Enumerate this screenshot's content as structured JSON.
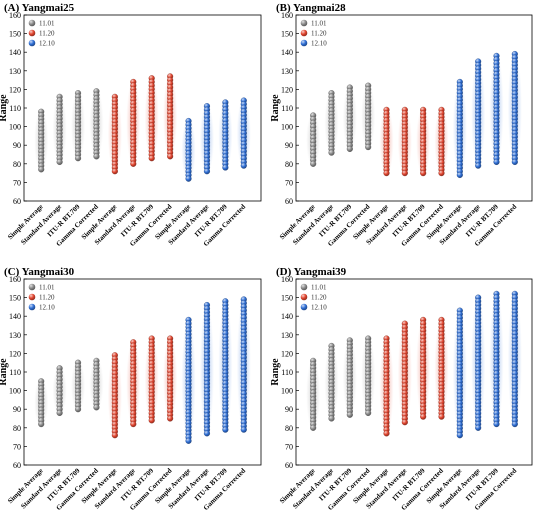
{
  "colors": {
    "11.01": "#8c8c8c",
    "11.20": "#e2452f",
    "12.10": "#2f6fd6"
  },
  "chart_data": [
    {
      "type": "scatter",
      "title": "(A) Yangmai25",
      "ylabel": "Range",
      "ylim": [
        60,
        160
      ],
      "yticks": [
        60,
        70,
        80,
        90,
        100,
        110,
        120,
        130,
        140,
        150,
        160
      ],
      "legend": [
        "11.01",
        "11.20",
        "12.10"
      ],
      "categories": [
        "Simple Average",
        "Standard Average",
        "ITU-R BT.709",
        "Gamma Corrected",
        "Simple Average",
        "Standard Average",
        "ITU-R BT.709",
        "Gamma Corrected",
        "Simple Average",
        "Standard Average",
        "ITU-R BT.709",
        "Gamma Corrected"
      ],
      "series": [
        {
          "name": "11.01",
          "columns": [
            {
              "min": 77,
              "max": 108
            },
            {
              "min": 81,
              "max": 116
            },
            {
              "min": 83,
              "max": 118
            },
            {
              "min": 84,
              "max": 119
            }
          ]
        },
        {
          "name": "11.20",
          "columns": [
            {
              "min": 76,
              "max": 116
            },
            {
              "min": 80,
              "max": 124
            },
            {
              "min": 83,
              "max": 126
            },
            {
              "min": 84,
              "max": 127
            }
          ]
        },
        {
          "name": "12.10",
          "columns": [
            {
              "min": 72,
              "max": 103
            },
            {
              "min": 76,
              "max": 111
            },
            {
              "min": 78,
              "max": 113
            },
            {
              "min": 79,
              "max": 114
            }
          ]
        }
      ]
    },
    {
      "type": "scatter",
      "title": "(B) Yangmai28",
      "ylabel": "Range",
      "ylim": [
        60,
        160
      ],
      "yticks": [
        60,
        70,
        80,
        90,
        100,
        110,
        120,
        130,
        140,
        150,
        160
      ],
      "legend": [
        "11.01",
        "11.20",
        "12.10"
      ],
      "categories": [
        "Simple Average",
        "Standard Average",
        "ITU-R BT.709",
        "Gamma Corrected",
        "Simple Average",
        "Standard Average",
        "ITU-R BT.709",
        "Gamma Corrected",
        "Simple Average",
        "Standard Average",
        "ITU-R BT.709",
        "Gamma Corrected"
      ],
      "series": [
        {
          "name": "11.01",
          "columns": [
            {
              "min": 80,
              "max": 106
            },
            {
              "min": 86,
              "max": 118
            },
            {
              "min": 88,
              "max": 121
            },
            {
              "min": 89,
              "max": 122
            }
          ]
        },
        {
          "name": "11.20",
          "columns": [
            {
              "min": 75,
              "max": 109
            },
            {
              "min": 75,
              "max": 109
            },
            {
              "min": 75,
              "max": 109
            },
            {
              "min": 75,
              "max": 109
            }
          ]
        },
        {
          "name": "12.10",
          "columns": [
            {
              "min": 74,
              "max": 124
            },
            {
              "min": 79,
              "max": 135
            },
            {
              "min": 81,
              "max": 138
            },
            {
              "min": 81,
              "max": 139
            }
          ]
        }
      ]
    },
    {
      "type": "scatter",
      "title": "(C) Yangmai30",
      "ylabel": "Range",
      "ylim": [
        60,
        160
      ],
      "yticks": [
        60,
        70,
        80,
        90,
        100,
        110,
        120,
        130,
        140,
        150,
        160
      ],
      "legend": [
        "11.01",
        "11.20",
        "12.10"
      ],
      "categories": [
        "Simple Average",
        "Standard Average",
        "ITU-R BT.709",
        "Gamma Corrected",
        "Simple Average",
        "Standard Average",
        "ITU-R BT.709",
        "Gamma Corrected",
        "Simple Average",
        "Standard Average",
        "ITU-R BT.709",
        "Gamma Corrected"
      ],
      "series": [
        {
          "name": "11.01",
          "columns": [
            {
              "min": 82,
              "max": 105
            },
            {
              "min": 88,
              "max": 112
            },
            {
              "min": 90,
              "max": 115
            },
            {
              "min": 91,
              "max": 116
            }
          ]
        },
        {
          "name": "11.20",
          "columns": [
            {
              "min": 76,
              "max": 119
            },
            {
              "min": 82,
              "max": 126
            },
            {
              "min": 84,
              "max": 128
            },
            {
              "min": 85,
              "max": 128
            }
          ]
        },
        {
          "name": "12.10",
          "columns": [
            {
              "min": 73,
              "max": 138
            },
            {
              "min": 77,
              "max": 146
            },
            {
              "min": 79,
              "max": 148
            },
            {
              "min": 79,
              "max": 149
            }
          ]
        }
      ]
    },
    {
      "type": "scatter",
      "title": "(D) Yangmai39",
      "ylabel": "Range",
      "ylim": [
        60,
        160
      ],
      "yticks": [
        60,
        70,
        80,
        90,
        100,
        110,
        120,
        130,
        140,
        150,
        160
      ],
      "legend": [
        "11.01",
        "11.20",
        "12.10"
      ],
      "categories": [
        "Simple Average",
        "Standard Average",
        "ITU-R BT.709",
        "Gamma Corrected",
        "Simple Average",
        "Standard Average",
        "ITU-R BT.709",
        "Gamma Corrected",
        "Simple Average",
        "Standard Average",
        "ITU-R BT.709",
        "Gamma Corrected"
      ],
      "series": [
        {
          "name": "11.01",
          "columns": [
            {
              "min": 80,
              "max": 116
            },
            {
              "min": 85,
              "max": 124
            },
            {
              "min": 87,
              "max": 127
            },
            {
              "min": 88,
              "max": 128
            }
          ]
        },
        {
          "name": "11.20",
          "columns": [
            {
              "min": 77,
              "max": 128
            },
            {
              "min": 83,
              "max": 136
            },
            {
              "min": 86,
              "max": 138
            },
            {
              "min": 86,
              "max": 138
            }
          ]
        },
        {
          "name": "12.10",
          "columns": [
            {
              "min": 76,
              "max": 143
            },
            {
              "min": 80,
              "max": 150
            },
            {
              "min": 82,
              "max": 152
            },
            {
              "min": 82,
              "max": 152
            }
          ]
        }
      ]
    }
  ]
}
